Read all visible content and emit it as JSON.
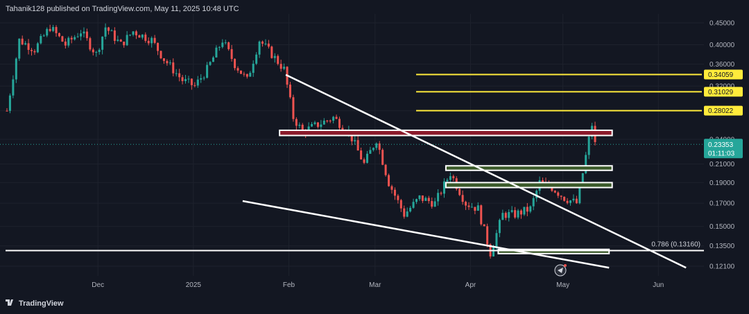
{
  "header": {
    "publisher_line": "Tahanik128 published on TradingView.com, May 11, 2025 10:48 UTC"
  },
  "logo": {
    "text": "TradingView"
  },
  "colors": {
    "background": "#131722",
    "up": "#26a69a",
    "down": "#ef5350",
    "yellow_level": "#ffeb3b",
    "zone_red": "#8b1a2b",
    "zone_green": "#3b5a2a",
    "trendline": "#ffffff"
  },
  "chart_data": {
    "type": "candlestick",
    "y_scale": "log",
    "y_ticks": [
      "0.45000",
      "0.40000",
      "0.36000",
      "0.32000",
      "0.28000",
      "0.24000",
      "0.21000",
      "0.19000",
      "0.17000",
      "0.15000",
      "0.13500",
      "0.12100"
    ],
    "x_ticks": [
      "Dec",
      "2025",
      "Feb",
      "Mar",
      "Apr",
      "May",
      "Jun"
    ],
    "current_price": {
      "value": "0.23353",
      "countdown": "01:11:03"
    },
    "resistance_levels": [
      {
        "label": "0.34059",
        "value": 0.34059
      },
      {
        "label": "0.31029",
        "value": 0.31029
      },
      {
        "label": "0.28022",
        "value": 0.28022
      }
    ],
    "fib_level": {
      "label": "0.786 (0.13160)",
      "value": 0.1316
    },
    "zones": [
      {
        "kind": "resistance",
        "low": 0.245,
        "high": 0.252,
        "start": "2025-01-29",
        "end": "2025-05-17"
      },
      {
        "kind": "support",
        "low": 0.203,
        "high": 0.208,
        "start": "2025-03-24",
        "end": "2025-05-17"
      },
      {
        "kind": "support",
        "low": 0.185,
        "high": 0.19,
        "start": "2025-03-24",
        "end": "2025-05-17"
      },
      {
        "kind": "support",
        "low": 0.1295,
        "high": 0.1325,
        "start": "2025-04-10",
        "end": "2025-05-16"
      }
    ],
    "trendlines": [
      {
        "from": {
          "date": "2025-01-31",
          "price": 0.34
        },
        "to": {
          "date": "2025-06-10",
          "price": 0.12
        }
      },
      {
        "from": {
          "date": "2025-01-17",
          "price": 0.172
        },
        "to": {
          "date": "2025-05-16",
          "price": 0.12
        }
      }
    ],
    "price_path": [
      [
        "2024-11-01",
        0.28
      ],
      [
        "2024-11-05",
        0.41
      ],
      [
        "2024-11-10",
        0.39
      ],
      [
        "2024-11-15",
        0.44
      ],
      [
        "2024-11-20",
        0.4
      ],
      [
        "2024-11-25",
        0.43
      ],
      [
        "2024-11-30",
        0.38
      ],
      [
        "2024-12-03",
        0.44
      ],
      [
        "2024-12-08",
        0.4
      ],
      [
        "2024-12-12",
        0.43
      ],
      [
        "2024-12-18",
        0.41
      ],
      [
        "2024-12-22",
        0.37
      ],
      [
        "2024-12-28",
        0.33
      ],
      [
        "2025-01-01",
        0.32
      ],
      [
        "2025-01-05",
        0.35
      ],
      [
        "2025-01-10",
        0.41
      ],
      [
        "2025-01-14",
        0.36
      ],
      [
        "2025-01-18",
        0.33
      ],
      [
        "2025-01-22",
        0.41
      ],
      [
        "2025-01-26",
        0.38
      ],
      [
        "2025-01-30",
        0.35
      ],
      [
        "2025-02-02",
        0.27
      ],
      [
        "2025-02-05",
        0.25
      ],
      [
        "2025-02-10",
        0.26
      ],
      [
        "2025-02-15",
        0.27
      ],
      [
        "2025-02-20",
        0.25
      ],
      [
        "2025-02-25",
        0.21
      ],
      [
        "2025-03-01",
        0.24
      ],
      [
        "2025-03-05",
        0.19
      ],
      [
        "2025-03-10",
        0.16
      ],
      [
        "2025-03-15",
        0.175
      ],
      [
        "2025-03-20",
        0.17
      ],
      [
        "2025-03-25",
        0.2
      ],
      [
        "2025-03-30",
        0.17
      ],
      [
        "2025-04-03",
        0.165
      ],
      [
        "2025-04-07",
        0.13
      ],
      [
        "2025-04-11",
        0.16
      ],
      [
        "2025-04-15",
        0.16
      ],
      [
        "2025-04-20",
        0.165
      ],
      [
        "2025-04-23",
        0.19
      ],
      [
        "2025-04-27",
        0.185
      ],
      [
        "2025-05-01",
        0.175
      ],
      [
        "2025-05-05",
        0.17
      ],
      [
        "2025-05-07",
        0.2
      ],
      [
        "2025-05-09",
        0.24
      ],
      [
        "2025-05-10",
        0.26
      ],
      [
        "2025-05-11",
        0.2335
      ]
    ]
  }
}
